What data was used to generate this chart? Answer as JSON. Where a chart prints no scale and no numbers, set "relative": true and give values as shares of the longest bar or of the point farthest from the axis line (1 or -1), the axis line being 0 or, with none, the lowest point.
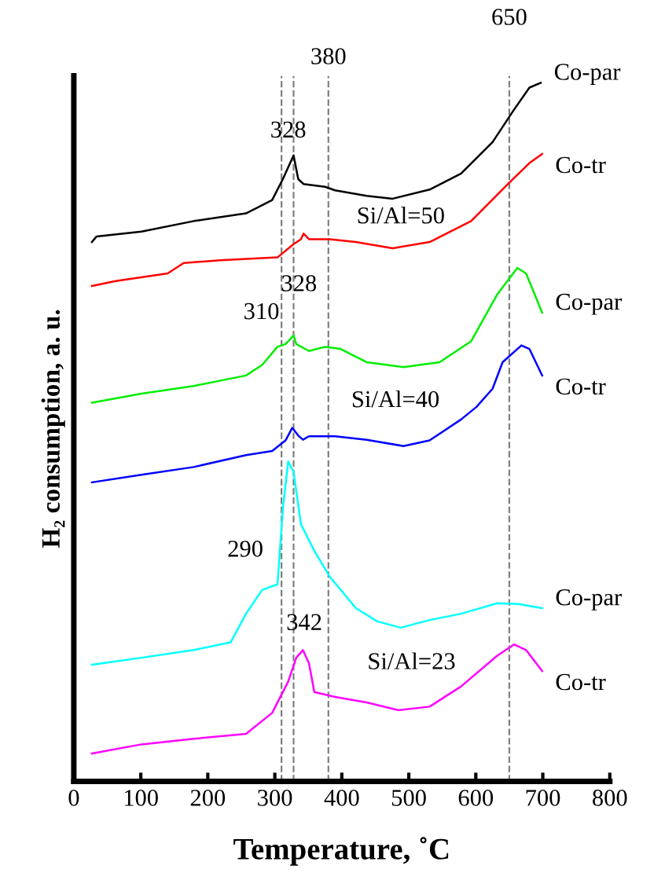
{
  "chart_data": {
    "type": "line",
    "relative": true,
    "xlabel": "Temperature, ˚C",
    "ylabel": "H₂ consumption, a. u.",
    "xlim": [
      0,
      800
    ],
    "xticks": [
      0,
      100,
      200,
      300,
      400,
      500,
      600,
      700,
      800
    ],
    "tick_labels": "x",
    "grid": false,
    "marker": "none",
    "line_style": "solid",
    "series": [
      {
        "name": "Co-par",
        "color": "#000000",
        "x": [
          27,
          34,
          101,
          179,
          257,
          296,
          312,
          328,
          335,
          343,
          375,
          390,
          437,
          476,
          531,
          578,
          625,
          656,
          680,
          697
        ],
        "values": [
          0.772,
          0.78,
          0.787,
          0.802,
          0.813,
          0.832,
          0.862,
          0.896,
          0.862,
          0.855,
          0.851,
          0.846,
          0.838,
          0.834,
          0.847,
          0.87,
          0.915,
          0.96,
          0.993,
          1.0
        ]
      },
      {
        "name": "Co-tr",
        "color": "#ff0000",
        "x": [
          27,
          62,
          140,
          164,
          218,
          304,
          328,
          339,
          343,
          351,
          382,
          421,
          476,
          531,
          593,
          648,
          680,
          699
        ],
        "values": [
          0.709,
          0.716,
          0.727,
          0.742,
          0.746,
          0.75,
          0.769,
          0.776,
          0.784,
          0.776,
          0.776,
          0.772,
          0.763,
          0.772,
          0.802,
          0.855,
          0.885,
          0.898
        ]
      },
      {
        "name": "Co-par",
        "color": "#00ee00",
        "x": [
          27,
          101,
          179,
          257,
          281,
          304,
          316,
          328,
          332,
          351,
          375,
          398,
          437,
          492,
          546,
          593,
          632,
          662,
          675,
          699
        ],
        "values": [
          0.542,
          0.555,
          0.566,
          0.581,
          0.596,
          0.622,
          0.626,
          0.638,
          0.626,
          0.616,
          0.622,
          0.619,
          0.6,
          0.593,
          0.6,
          0.63,
          0.697,
          0.735,
          0.727,
          0.671
        ]
      },
      {
        "name": "Co-tr",
        "color": "#0000ff",
        "x": [
          27,
          101,
          179,
          257,
          296,
          316,
          326,
          335,
          342,
          351,
          390,
          437,
          492,
          531,
          578,
          601,
          625,
          640,
          668,
          680,
          699
        ],
        "values": [
          0.428,
          0.439,
          0.45,
          0.467,
          0.473,
          0.488,
          0.506,
          0.495,
          0.489,
          0.494,
          0.494,
          0.489,
          0.48,
          0.488,
          0.518,
          0.536,
          0.562,
          0.6,
          0.624,
          0.619,
          0.581
        ]
      },
      {
        "name": "Co-par",
        "color": "#00ffff",
        "x": [
          27,
          101,
          179,
          234,
          257,
          281,
          292,
          304,
          312,
          320,
          328,
          339,
          359,
          382,
          421,
          453,
          488,
          531,
          578,
          632,
          664,
          699
        ],
        "values": [
          0.167,
          0.177,
          0.188,
          0.199,
          0.24,
          0.274,
          0.278,
          0.282,
          0.39,
          0.458,
          0.443,
          0.368,
          0.33,
          0.293,
          0.248,
          0.229,
          0.22,
          0.231,
          0.24,
          0.255,
          0.254,
          0.248
        ]
      },
      {
        "name": "Co-tr",
        "color": "#ff00ff",
        "x": [
          27,
          101,
          179,
          257,
          296,
          320,
          332,
          342,
          351,
          359,
          390,
          437,
          484,
          531,
          578,
          632,
          657,
          675,
          699
        ],
        "values": [
          0.04,
          0.053,
          0.061,
          0.068,
          0.098,
          0.143,
          0.177,
          0.188,
          0.169,
          0.128,
          0.121,
          0.113,
          0.102,
          0.107,
          0.136,
          0.18,
          0.196,
          0.188,
          0.158
        ]
      }
    ],
    "ref_lines": [
      {
        "axis": "x",
        "value": 310,
        "color": "#808080",
        "line_style": "dashed"
      },
      {
        "axis": "x",
        "value": 328,
        "color": "#808080",
        "line_style": "dashed"
      },
      {
        "axis": "x",
        "value": 380,
        "label": "380",
        "color": "#808080",
        "line_style": "dashed"
      },
      {
        "axis": "x",
        "value": 650,
        "label": "650",
        "color": "#808080",
        "line_style": "dashed"
      }
    ],
    "annotations": [
      "328",
      "Si/Al=50",
      "310",
      "328",
      "Si/Al=40",
      "290",
      "342",
      "Si/Al=23"
    ]
  }
}
